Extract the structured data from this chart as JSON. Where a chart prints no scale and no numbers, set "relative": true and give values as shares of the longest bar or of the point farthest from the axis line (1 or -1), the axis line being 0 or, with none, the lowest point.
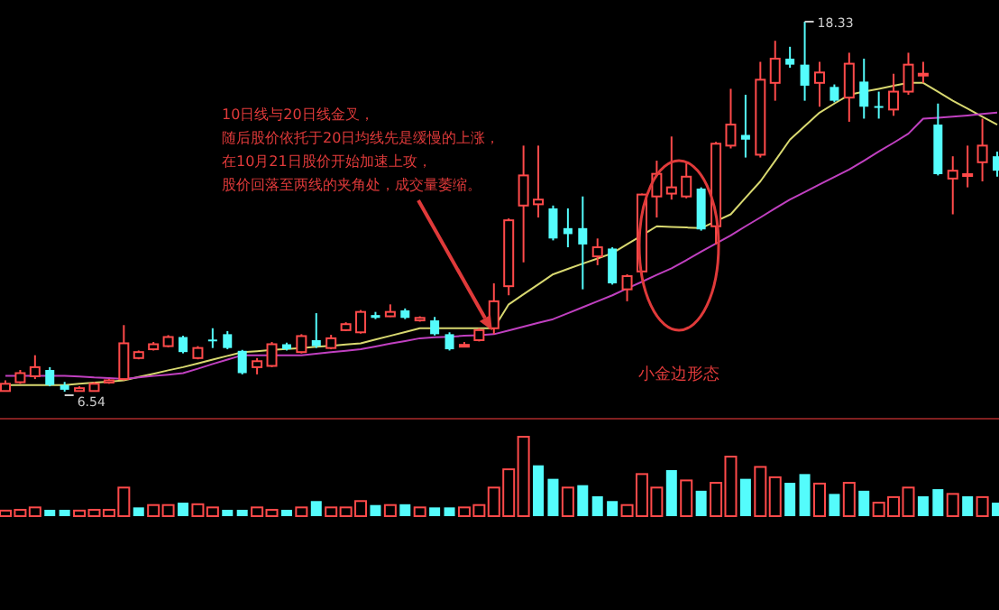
{
  "chart_data": [
    {
      "type": "candlestick",
      "categories": [
        null,
        null,
        null,
        null,
        null,
        null,
        null,
        null,
        null,
        null,
        null,
        null,
        null,
        null,
        null,
        null,
        null,
        null,
        null,
        null,
        null,
        null,
        null,
        null,
        null,
        null,
        null,
        null,
        null,
        null,
        null,
        null,
        null,
        null,
        null,
        null,
        null,
        null,
        null,
        null,
        null,
        null,
        null,
        null,
        null,
        null,
        null,
        null,
        null,
        null,
        null,
        null,
        null,
        null,
        null,
        null,
        null,
        null,
        null,
        null,
        null,
        null,
        null,
        null,
        null,
        null,
        null,
        null
      ],
      "ohlc": [
        [
          6.56,
          6.9,
          6.56,
          6.79
        ],
        [
          6.84,
          7.23,
          6.79,
          7.13
        ],
        [
          7.03,
          7.7,
          6.94,
          7.32
        ],
        [
          7.23,
          7.32,
          6.71,
          6.75
        ],
        [
          6.75,
          6.85,
          6.54,
          6.6
        ],
        [
          6.56,
          6.71,
          6.56,
          6.65
        ],
        [
          6.56,
          6.85,
          6.56,
          6.79
        ],
        [
          6.83,
          6.94,
          6.79,
          6.9
        ],
        [
          6.94,
          8.66,
          6.9,
          8.08
        ],
        [
          7.61,
          7.85,
          7.57,
          7.8
        ],
        [
          7.89,
          8.12,
          7.85,
          8.05
        ],
        [
          7.99,
          8.34,
          7.95,
          8.28
        ],
        [
          8.28,
          8.32,
          7.76,
          7.8
        ],
        [
          7.61,
          7.99,
          7.57,
          7.93
        ],
        [
          8.2,
          8.56,
          7.93,
          8.16
        ],
        [
          8.37,
          8.47,
          7.89,
          7.93
        ],
        [
          7.84,
          7.87,
          7.09,
          7.13
        ],
        [
          7.32,
          7.61,
          7.09,
          7.51
        ],
        [
          7.36,
          8.12,
          7.32,
          8.05
        ],
        [
          8.05,
          8.1,
          7.85,
          7.89
        ],
        [
          7.8,
          8.37,
          7.76,
          8.31
        ],
        [
          8.18,
          9.04,
          7.93,
          7.99
        ],
        [
          7.93,
          8.35,
          7.89,
          8.24
        ],
        [
          8.5,
          8.75,
          8.47,
          8.69
        ],
        [
          8.43,
          9.14,
          8.39,
          9.08
        ],
        [
          8.98,
          9.08,
          8.85,
          8.89
        ],
        [
          8.94,
          9.32,
          8.92,
          9.08
        ],
        [
          9.13,
          9.19,
          8.85,
          8.89
        ],
        [
          8.81,
          8.94,
          8.77,
          8.89
        ],
        [
          8.81,
          8.92,
          8.33,
          8.37
        ],
        [
          8.37,
          8.43,
          7.85,
          7.89
        ],
        [
          7.99,
          8.12,
          7.95,
          8.03
        ],
        [
          8.18,
          8.56,
          8.14,
          8.5
        ],
        [
          8.56,
          9.99,
          8.37,
          9.42
        ],
        [
          9.9,
          12.06,
          9.61,
          12.0
        ],
        [
          12.47,
          14.38,
          10.66,
          13.43
        ],
        [
          12.51,
          14.38,
          12.09,
          12.66
        ],
        [
          12.38,
          12.47,
          11.36,
          11.42
        ],
        [
          11.75,
          12.38,
          11.14,
          11.56
        ],
        [
          11.75,
          12.76,
          9.8,
          11.23
        ],
        [
          10.85,
          11.42,
          10.57,
          11.14
        ],
        [
          11.1,
          11.14,
          9.95,
          9.99
        ],
        [
          9.8,
          10.28,
          9.42,
          10.22
        ],
        [
          10.37,
          12.85,
          10.33,
          12.82
        ],
        [
          12.76,
          13.9,
          12.09,
          13.48
        ],
        [
          12.85,
          14.67,
          12.66,
          13.05
        ],
        [
          12.76,
          13.81,
          12.7,
          13.39
        ],
        [
          13.01,
          13.05,
          11.67,
          11.71
        ],
        [
          11.81,
          14.5,
          11.23,
          14.44
        ],
        [
          14.38,
          16.19,
          14.29,
          15.05
        ],
        [
          14.72,
          16.0,
          14.0,
          14.57
        ],
        [
          14.09,
          17.05,
          14.0,
          16.48
        ],
        [
          16.38,
          17.72,
          15.81,
          17.15
        ],
        [
          17.15,
          17.53,
          16.86,
          16.96
        ],
        [
          16.96,
          18.33,
          15.81,
          16.29
        ],
        [
          16.38,
          17.05,
          15.62,
          16.71
        ],
        [
          16.25,
          16.33,
          15.76,
          15.81
        ],
        [
          15.91,
          17.34,
          15.14,
          16.99
        ],
        [
          16.42,
          17.15,
          15.24,
          15.62
        ],
        [
          15.64,
          16.1,
          15.24,
          15.62
        ],
        [
          15.53,
          16.67,
          15.33,
          16.1
        ],
        [
          16.1,
          17.34,
          16.0,
          16.96
        ],
        [
          16.65,
          17.05,
          16.38,
          16.67
        ],
        [
          15.05,
          15.72,
          13.43,
          13.47
        ],
        [
          13.33,
          14.04,
          12.19,
          13.58
        ],
        [
          13.45,
          14.38,
          13.05,
          13.47
        ],
        [
          13.85,
          15.24,
          13.24,
          14.38
        ],
        [
          14.04,
          14.19,
          13.39,
          13.58
        ]
      ],
      "colors": [
        "#ff4a4a",
        "#ff4a4a",
        "#ff4a4a",
        "#54fcfc",
        "#54fcfc",
        "#ff4a4a",
        "#ff4a4a",
        "#ff4a4a",
        "#ff4a4a",
        "#ff4a4a",
        "#ff4a4a",
        "#ff4a4a",
        "#54fcfc",
        "#ff4a4a",
        "#54fcfc",
        "#54fcfc",
        "#54fcfc",
        "#ff4a4a",
        "#ff4a4a",
        "#54fcfc",
        "#ff4a4a",
        "#54fcfc",
        "#ff4a4a",
        "#ff4a4a",
        "#ff4a4a",
        "#54fcfc",
        "#ff4a4a",
        "#54fcfc",
        "#ff4a4a",
        "#54fcfc",
        "#54fcfc",
        "#ff4a4a",
        "#ff4a4a",
        "#ff4a4a",
        "#ff4a4a",
        "#ff4a4a",
        "#ff4a4a",
        "#54fcfc",
        "#54fcfc",
        "#54fcfc",
        "#ff4a4a",
        "#54fcfc",
        "#ff4a4a",
        "#ff4a4a",
        "#ff4a4a",
        "#ff4a4a",
        "#ff4a4a",
        "#54fcfc",
        "#ff4a4a",
        "#ff4a4a",
        "#54fcfc",
        "#ff4a4a",
        "#ff4a4a",
        "#54fcfc",
        "#54fcfc",
        "#ff4a4a",
        "#54fcfc",
        "#ff4a4a",
        "#54fcfc",
        "#54fcfc",
        "#ff4a4a",
        "#ff4a4a",
        "#ff4a4a",
        "#54fcfc",
        "#ff4a4a",
        "#ff4a4a",
        "#ff4a4a",
        "#54fcfc"
      ],
      "series": [
        {
          "type": "line",
          "color": "#d8d870",
          "values": [
            6.75,
            6.75,
            6.75,
            6.75,
            6.75,
            6.79,
            6.83,
            6.86,
            6.9,
            7.01,
            7.11,
            7.22,
            7.32,
            7.44,
            7.56,
            7.68,
            7.8,
            7.83,
            7.87,
            7.9,
            7.93,
            7.97,
            8.0,
            8.04,
            8.08,
            8.2,
            8.32,
            8.44,
            8.56,
            8.56,
            8.56,
            8.56,
            8.56,
            8.56,
            9.32,
            9.64,
            9.96,
            10.28,
            10.45,
            10.62,
            10.78,
            10.95,
            11.24,
            11.52,
            11.81,
            11.79,
            11.77,
            11.75,
            11.97,
            12.19,
            12.72,
            13.24,
            13.9,
            14.57,
            15.0,
            15.43,
            15.72,
            16.0,
            16.1,
            16.19,
            16.29,
            16.38,
            16.38,
            16.1,
            15.81,
            15.56,
            15.3,
            15.05
          ]
        },
        {
          "type": "line",
          "color": "#c040c0",
          "values": [
            7.04,
            7.04,
            7.04,
            7.04,
            7.04,
            7.02,
            6.99,
            6.97,
            6.94,
            6.99,
            7.04,
            7.08,
            7.13,
            7.27,
            7.42,
            7.56,
            7.7,
            7.7,
            7.7,
            7.7,
            7.7,
            7.75,
            7.8,
            7.84,
            7.89,
            7.98,
            8.07,
            8.15,
            8.24,
            8.27,
            8.29,
            8.32,
            8.34,
            8.37,
            8.49,
            8.61,
            8.73,
            8.85,
            9.04,
            9.23,
            9.42,
            9.61,
            9.83,
            10.04,
            10.26,
            10.47,
            10.73,
            11.0,
            11.26,
            11.52,
            11.81,
            12.09,
            12.38,
            12.66,
            12.9,
            13.14,
            13.38,
            13.62,
            13.9,
            14.19,
            14.47,
            14.76,
            15.24,
            15.27,
            15.3,
            15.34,
            15.39,
            15.43
          ]
        }
      ],
      "annotations": [
        "10日线与20日线金叉，",
        "随后股价依托于20日均线先是缓慢的上涨，",
        "在10月21日股价开始加速上攻，",
        "股价回落至两线的夹角处，成交量萎缩。",
        "小金边形态",
        "18.33",
        "6.54"
      ]
    },
    {
      "type": "bar",
      "relative": true,
      "categories": [
        null,
        null,
        null,
        null,
        null,
        null,
        null,
        null,
        null,
        null,
        null,
        null,
        null,
        null,
        null,
        null,
        null,
        null,
        null,
        null,
        null,
        null,
        null,
        null,
        null,
        null,
        null,
        null,
        null,
        null,
        null,
        null,
        null,
        null,
        null,
        null,
        null,
        null,
        null,
        null,
        null,
        null,
        null,
        null,
        null,
        null,
        null,
        null,
        null,
        null,
        null,
        null,
        null,
        null,
        null,
        null,
        null,
        null,
        null,
        null,
        null,
        null,
        null,
        null,
        null,
        null,
        null,
        null
      ],
      "values": [
        0.07,
        0.08,
        0.11,
        0.08,
        0.08,
        0.07,
        0.08,
        0.08,
        0.36,
        0.11,
        0.14,
        0.14,
        0.17,
        0.15,
        0.11,
        0.08,
        0.08,
        0.11,
        0.08,
        0.08,
        0.11,
        0.19,
        0.11,
        0.11,
        0.19,
        0.14,
        0.14,
        0.15,
        0.11,
        0.11,
        0.11,
        0.11,
        0.14,
        0.36,
        0.59,
        1,
        0.64,
        0.47,
        0.36,
        0.39,
        0.25,
        0.19,
        0.14,
        0.53,
        0.36,
        0.58,
        0.45,
        0.32,
        0.42,
        0.75,
        0.47,
        0.62,
        0.49,
        0.42,
        0.53,
        0.41,
        0.28,
        0.42,
        0.32,
        0.17,
        0.24,
        0.36,
        0.25,
        0.34,
        0.28,
        0.25,
        0.24,
        0.17
      ],
      "colors": [
        "#ff4a4a",
        "#ff4a4a",
        "#ff4a4a",
        "#54fcfc",
        "#54fcfc",
        "#ff4a4a",
        "#ff4a4a",
        "#ff4a4a",
        "#ff4a4a",
        "#54fcfc",
        "#ff4a4a",
        "#ff4a4a",
        "#54fcfc",
        "#ff4a4a",
        "#ff4a4a",
        "#54fcfc",
        "#54fcfc",
        "#ff4a4a",
        "#ff4a4a",
        "#54fcfc",
        "#ff4a4a",
        "#54fcfc",
        "#ff4a4a",
        "#ff4a4a",
        "#ff4a4a",
        "#54fcfc",
        "#ff4a4a",
        "#54fcfc",
        "#ff4a4a",
        "#54fcfc",
        "#54fcfc",
        "#ff4a4a",
        "#ff4a4a",
        "#ff4a4a",
        "#ff4a4a",
        "#ff4a4a",
        "#54fcfc",
        "#54fcfc",
        "#ff4a4a",
        "#54fcfc",
        "#54fcfc",
        "#54fcfc",
        "#ff4a4a",
        "#ff4a4a",
        "#ff4a4a",
        "#54fcfc",
        "#ff4a4a",
        "#54fcfc",
        "#ff4a4a",
        "#ff4a4a",
        "#54fcfc",
        "#ff4a4a",
        "#ff4a4a",
        "#54fcfc",
        "#54fcfc",
        "#ff4a4a",
        "#54fcfc",
        "#ff4a4a",
        "#54fcfc",
        "#ff4a4a",
        "#ff4a4a",
        "#ff4a4a",
        "#54fcfc",
        "#54fcfc",
        "#ff4a4a",
        "#54fcfc",
        "#ff4a4a",
        "#54fcfc"
      ]
    }
  ]
}
